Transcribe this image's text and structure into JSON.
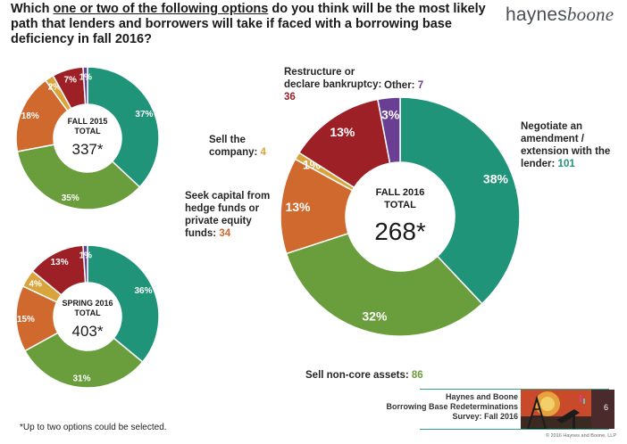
{
  "header": {
    "title_before": "Which ",
    "title_underlined": "one or two of the following options",
    "title_after": " do you think will be the most likely path that lenders and borrowers will take if faced with a borrowing base deficiency in fall 2016?"
  },
  "logo": {
    "part1": "haynes",
    "part2": "boone"
  },
  "colors": {
    "negotiate": "#1f9478",
    "sell_non_core": "#6a9e3c",
    "seek_capital": "#d0692e",
    "sell_company": "#d9a43b",
    "restructure": "#9e2027",
    "other": "#6a3e93"
  },
  "chart_data": [
    {
      "type": "pie",
      "label_top": "FALL 2015",
      "label_mid": "TOTAL",
      "total": "337*",
      "categories": [
        "Negotiate an amendment / extension with the lender",
        "Sell non-core assets",
        "Seek capital from hedge funds or private equity funds",
        "Sell the company",
        "Restructure or declare bankruptcy",
        "Other"
      ],
      "values": [
        37,
        35,
        18,
        2,
        7,
        1
      ],
      "labels": [
        "37%",
        "35%",
        "18%",
        "2%",
        "7%",
        "1%"
      ]
    },
    {
      "type": "pie",
      "label_top": "SPRING 2016",
      "label_mid": "TOTAL",
      "total": "403*",
      "categories": [
        "Negotiate an amendment / extension with the lender",
        "Sell non-core assets",
        "Seek capital from hedge funds or private equity funds",
        "Sell the company",
        "Restructure or declare bankruptcy",
        "Other"
      ],
      "values": [
        36,
        31,
        15,
        4,
        13,
        1
      ],
      "labels": [
        "36%",
        "31%",
        "15%",
        "4%",
        "13%",
        "1%"
      ]
    },
    {
      "type": "pie",
      "label_top": "FALL 2016",
      "label_mid": "TOTAL",
      "total": "268*",
      "categories": [
        "Negotiate an amendment / extension with the lender",
        "Sell non-core assets",
        "Seek capital from hedge funds or private equity funds",
        "Sell the company",
        "Restructure or declare bankruptcy",
        "Other"
      ],
      "values": [
        38,
        32,
        13,
        1,
        13,
        3
      ],
      "labels": [
        "38%",
        "32%",
        "13%",
        "1%",
        "13%",
        "3%"
      ],
      "counts": [
        101,
        86,
        34,
        4,
        36,
        7
      ]
    }
  ],
  "callouts": {
    "negotiate": {
      "text": "Negotiate an amendment / extension with the lender:",
      "value": "101"
    },
    "sell_non_core": {
      "text": "Sell non-core assets:",
      "value": "86"
    },
    "seek_capital": {
      "text": "Seek capital from hedge funds or private equity funds:",
      "value": "34"
    },
    "sell_company": {
      "text": "Sell the company:",
      "value": "4"
    },
    "restructure": {
      "text": "Restructure or declare bankruptcy:",
      "value": "36"
    },
    "other": {
      "text": "Other:",
      "value": "7"
    }
  },
  "footer": {
    "line1": "Haynes and Boone",
    "line2": "Borrowing Base Redeterminations",
    "line3": "Survey: Fall 2016",
    "page": "6",
    "copyright": "© 2016 Haynes and Boone, LLP"
  },
  "footnote": "*Up to two options could be selected."
}
